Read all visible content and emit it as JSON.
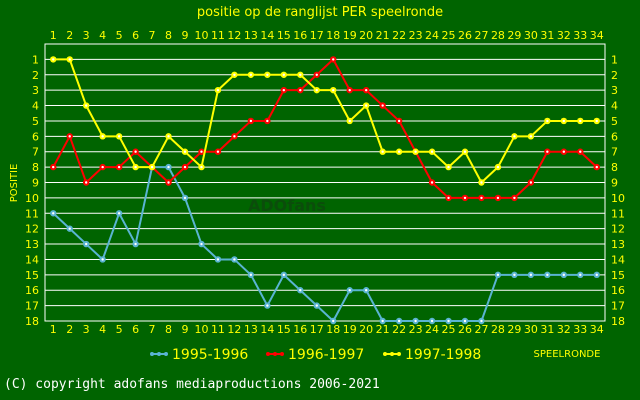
{
  "chart_data": {
    "type": "line",
    "title": "positie op de ranglijst PER speelronde",
    "xlabel": "SPEELRONDE",
    "ylabel": "POSITIE",
    "xlim": [
      1,
      34
    ],
    "ylim": [
      18,
      1
    ],
    "y_inverted": true,
    "grid": true,
    "legend_placement": "bottom",
    "x": [
      1,
      2,
      3,
      4,
      5,
      6,
      7,
      8,
      9,
      10,
      11,
      12,
      13,
      14,
      15,
      16,
      17,
      18,
      19,
      20,
      21,
      22,
      23,
      24,
      25,
      26,
      27,
      28,
      29,
      30,
      31,
      32,
      33,
      34
    ],
    "series": [
      {
        "name": "1995-1996",
        "color": "#5ab4d2",
        "values": [
          11,
          12,
          13,
          14,
          11,
          13,
          8,
          8,
          10,
          13,
          14,
          14,
          15,
          17,
          15,
          16,
          17,
          18,
          16,
          16,
          18,
          18,
          18,
          18,
          18,
          18,
          18,
          15,
          15,
          15,
          15,
          15,
          15,
          15
        ]
      },
      {
        "name": "1996-1997",
        "color": "#ff0000",
        "values": [
          8,
          6,
          9,
          8,
          8,
          7,
          8,
          9,
          8,
          7,
          7,
          6,
          5,
          5,
          3,
          3,
          2,
          1,
          3,
          3,
          4,
          5,
          7,
          9,
          10,
          10,
          10,
          10,
          10,
          9,
          7,
          7,
          7,
          8
        ]
      },
      {
        "name": "1997-1998",
        "color": "#ffff00",
        "values": [
          1,
          1,
          4,
          6,
          6,
          8,
          8,
          6,
          7,
          8,
          3,
          2,
          2,
          2,
          2,
          2,
          3,
          3,
          5,
          4,
          7,
          7,
          7,
          7,
          8,
          7,
          9,
          8,
          6,
          6,
          5,
          5,
          5,
          5
        ]
      }
    ]
  },
  "watermark": "ADOfans",
  "footer": {
    "copyright": "(C) copyright adofans mediaproductions 2006-2021"
  },
  "colors": {
    "background": "#006400",
    "grid": "#ffffff",
    "text": "#ffff00"
  }
}
